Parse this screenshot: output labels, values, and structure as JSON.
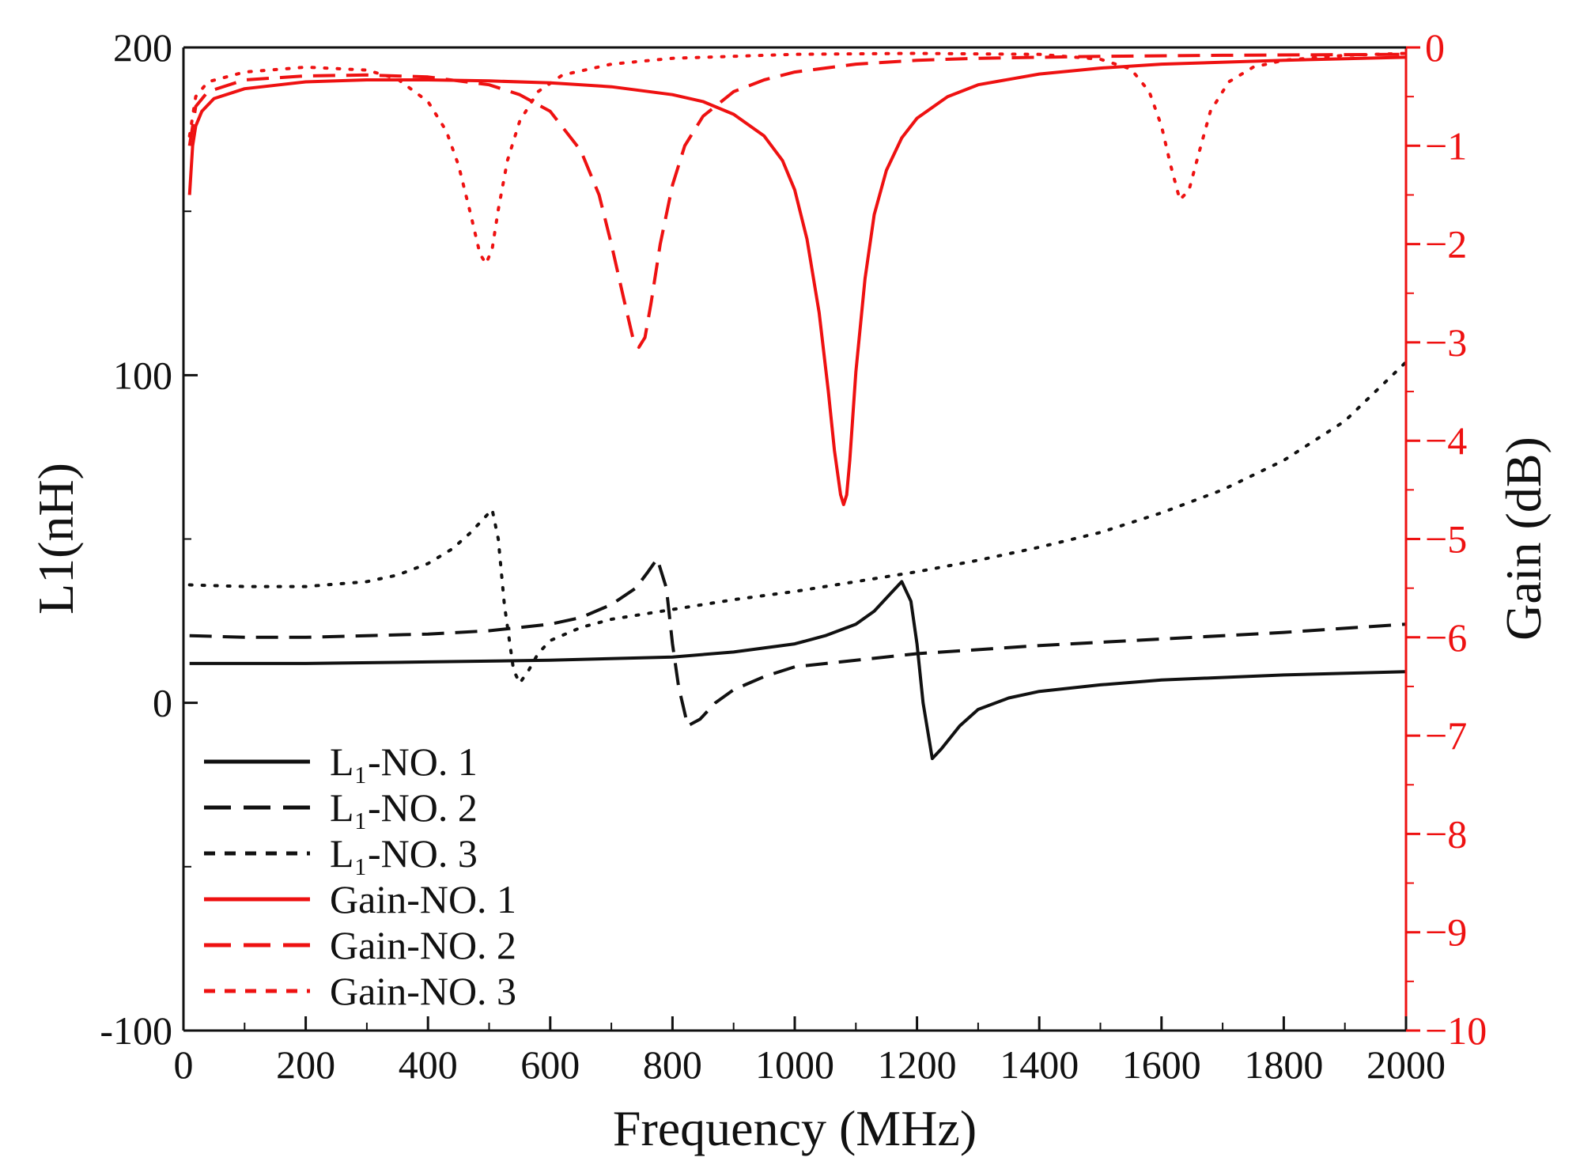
{
  "chart_data": {
    "type": "line",
    "title": "",
    "xlabel": "Frequency (MHz)",
    "ylabel_left": "L1(nH)",
    "ylabel_right": "Gain (dB)",
    "xlim": [
      0,
      2000
    ],
    "ylim_left": [
      -100,
      200
    ],
    "ylim_right": [
      -10,
      0
    ],
    "x_ticks": [
      0,
      200,
      400,
      600,
      800,
      1000,
      1200,
      1400,
      1600,
      1800,
      2000
    ],
    "y_left_ticks": [
      -100,
      0,
      100,
      200
    ],
    "y_right_ticks": [
      0,
      -1,
      -2,
      -3,
      -4,
      -5,
      -6,
      -7,
      -8,
      -9,
      -10
    ],
    "x_tick_labels": [
      "0",
      "200",
      "400",
      "600",
      "800",
      "1000",
      "1200",
      "1400",
      "1600",
      "1800",
      "2000"
    ],
    "y_left_tick_labels": [
      "-100",
      "0",
      "100",
      "200"
    ],
    "y_right_tick_labels": [
      "0",
      "−1",
      "−2",
      "−3",
      "−4",
      "−5",
      "−6",
      "−7",
      "−8",
      "−9",
      "−10"
    ],
    "legend": [
      {
        "label": "L₁-NO. 1",
        "color": "#111111",
        "dash": "solid"
      },
      {
        "label": "L₁-NO. 2",
        "color": "#111111",
        "dash": "long"
      },
      {
        "label": "L₁-NO. 3",
        "color": "#111111",
        "dash": "short"
      },
      {
        "label": "Gain-NO. 1",
        "color": "#ee1111",
        "dash": "solid"
      },
      {
        "label": "Gain-NO. 2",
        "color": "#ee1111",
        "dash": "long"
      },
      {
        "label": "Gain-NO. 3",
        "color": "#ee1111",
        "dash": "short"
      }
    ],
    "legend_position": "lower-left",
    "colors": {
      "l_series": "#111111",
      "gain_series": "#ee1111",
      "right_axis": "#ee1111",
      "left_axis": "#111111"
    },
    "series": [
      {
        "name": "L1-NO. 1",
        "axis": "left",
        "color": "#111111",
        "dash": "solid",
        "x": [
          10,
          200,
          400,
          600,
          800,
          900,
          1000,
          1050,
          1100,
          1130,
          1160,
          1175,
          1190,
          1200,
          1210,
          1225,
          1240,
          1270,
          1300,
          1350,
          1400,
          1500,
          1600,
          1800,
          2000
        ],
        "y": [
          12,
          12,
          12.5,
          13,
          14,
          15.5,
          18,
          20.5,
          24,
          28,
          34,
          37,
          31,
          18,
          0,
          -17,
          -14,
          -7,
          -2,
          1.5,
          3.5,
          5.5,
          7,
          8.5,
          9.5
        ]
      },
      {
        "name": "L1-NO. 2",
        "axis": "left",
        "color": "#111111",
        "dash": "long",
        "x": [
          10,
          100,
          200,
          300,
          400,
          500,
          600,
          650,
          700,
          740,
          760,
          775,
          790,
          800,
          810,
          825,
          845,
          870,
          900,
          950,
          1000,
          1200,
          1400,
          1600,
          1800,
          2000
        ],
        "y": [
          20.5,
          20,
          20,
          20.5,
          21,
          22,
          24,
          26,
          30,
          35,
          40,
          44,
          35,
          18,
          5,
          -7,
          -5,
          0,
          4,
          8,
          11,
          15,
          17.5,
          19.5,
          21.5,
          24
        ]
      },
      {
        "name": "L1-NO. 3",
        "axis": "left",
        "color": "#111111",
        "dash": "short",
        "x": [
          10,
          100,
          200,
          300,
          350,
          400,
          440,
          470,
          490,
          505,
          515,
          525,
          540,
          550,
          565,
          580,
          600,
          650,
          700,
          800,
          900,
          1000,
          1100,
          1200,
          1300,
          1400,
          1500,
          1600,
          1700,
          1800,
          1900,
          2000
        ],
        "y": [
          36,
          35.5,
          35.5,
          37,
          39,
          42.5,
          47,
          52,
          56,
          59,
          50,
          30,
          10,
          6,
          10,
          15,
          19,
          23,
          25.5,
          28.5,
          31.5,
          34,
          37,
          40,
          43.5,
          47.5,
          52,
          58,
          65,
          74,
          86,
          104
        ]
      },
      {
        "name": "Gain-NO. 1",
        "axis": "right",
        "color": "#ee1111",
        "dash": "solid",
        "x": [
          10,
          15,
          20,
          30,
          50,
          100,
          200,
          300,
          400,
          500,
          600,
          700,
          800,
          850,
          900,
          950,
          980,
          1000,
          1020,
          1040,
          1055,
          1065,
          1075,
          1080,
          1085,
          1090,
          1100,
          1115,
          1130,
          1150,
          1175,
          1200,
          1250,
          1300,
          1400,
          1500,
          1600,
          1800,
          2000
        ],
        "y": [
          -1.5,
          -1.0,
          -0.8,
          -0.65,
          -0.52,
          -0.42,
          -0.35,
          -0.33,
          -0.33,
          -0.34,
          -0.36,
          -0.4,
          -0.48,
          -0.55,
          -0.68,
          -0.9,
          -1.15,
          -1.45,
          -1.95,
          -2.7,
          -3.5,
          -4.1,
          -4.55,
          -4.65,
          -4.55,
          -4.2,
          -3.3,
          -2.35,
          -1.7,
          -1.25,
          -0.92,
          -0.72,
          -0.5,
          -0.38,
          -0.27,
          -0.21,
          -0.17,
          -0.13,
          -0.1
        ]
      },
      {
        "name": "Gain-NO. 2",
        "axis": "right",
        "color": "#ee1111",
        "dash": "long",
        "x": [
          10,
          20,
          40,
          100,
          200,
          300,
          400,
          500,
          550,
          600,
          650,
          680,
          700,
          720,
          735,
          745,
          755,
          765,
          780,
          800,
          820,
          850,
          900,
          950,
          1000,
          1100,
          1200,
          1300,
          1500,
          1700,
          2000
        ],
        "y": [
          -1.0,
          -0.6,
          -0.45,
          -0.33,
          -0.29,
          -0.28,
          -0.3,
          -0.38,
          -0.48,
          -0.65,
          -1.05,
          -1.5,
          -2.0,
          -2.55,
          -2.95,
          -3.05,
          -2.95,
          -2.6,
          -2.0,
          -1.4,
          -1.0,
          -0.7,
          -0.45,
          -0.33,
          -0.25,
          -0.17,
          -0.13,
          -0.11,
          -0.09,
          -0.08,
          -0.07
        ]
      },
      {
        "name": "Gain-NO. 3",
        "axis": "right",
        "color": "#ee1111",
        "dash": "short",
        "x": [
          10,
          20,
          40,
          100,
          200,
          300,
          350,
          400,
          430,
          450,
          470,
          485,
          495,
          505,
          515,
          530,
          550,
          580,
          620,
          700,
          800,
          1000,
          1200,
          1400,
          1500,
          1550,
          1580,
          1600,
          1615,
          1630,
          1645,
          1660,
          1680,
          1710,
          1750,
          1800,
          1900,
          2000
        ],
        "y": [
          -0.9,
          -0.5,
          -0.35,
          -0.25,
          -0.2,
          -0.23,
          -0.32,
          -0.55,
          -0.85,
          -1.2,
          -1.7,
          -2.1,
          -2.2,
          -2.05,
          -1.65,
          -1.15,
          -0.75,
          -0.45,
          -0.28,
          -0.17,
          -0.11,
          -0.07,
          -0.06,
          -0.07,
          -0.12,
          -0.22,
          -0.45,
          -0.8,
          -1.2,
          -1.55,
          -1.45,
          -1.1,
          -0.65,
          -0.35,
          -0.2,
          -0.13,
          -0.08,
          -0.06
        ]
      }
    ]
  }
}
